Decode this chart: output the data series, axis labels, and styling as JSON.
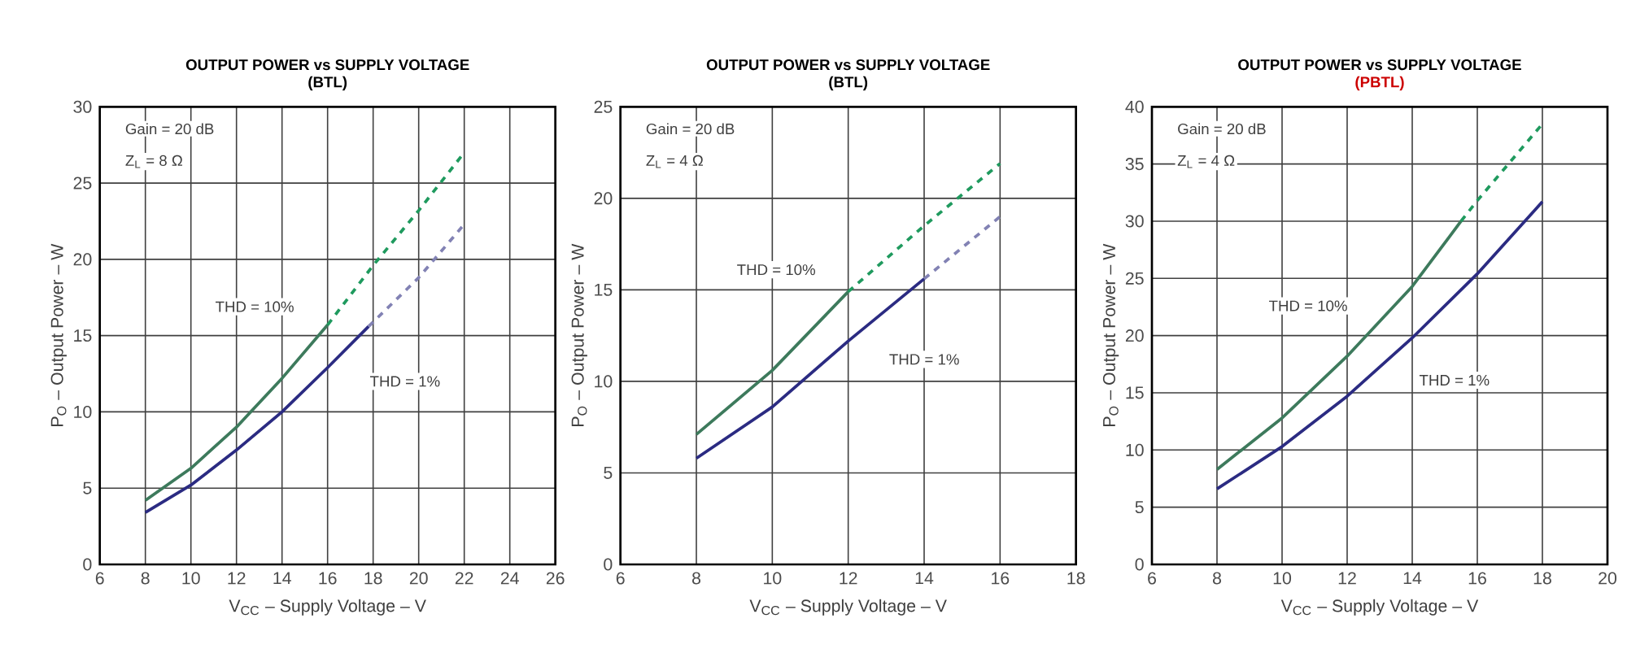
{
  "chart_data": [
    {
      "type": "line",
      "title": "OUTPUT POWER vs SUPPLY VOLTAGE",
      "subtitle": "(BTL)",
      "xlabel": "V$_{CC}$ – Supply Voltage – V",
      "ylabel": "P$_{O}$ – Output Power – W",
      "annotations": [
        "Gain = 20 dB",
        "Z$_{L}$ = 8 Ω",
        "THD = 10%",
        "THD = 1%"
      ],
      "xlim": [
        6,
        26
      ],
      "xticks": [
        6,
        8,
        10,
        12,
        14,
        16,
        18,
        20,
        22,
        24,
        26
      ],
      "ylim": [
        0,
        30
      ],
      "yticks": [
        0,
        5,
        10,
        15,
        20,
        25,
        30
      ],
      "grid": true,
      "series": [
        {
          "color": "#3d7a5c",
          "line_style": "solid",
          "x": [
            8,
            10,
            12,
            14,
            16
          ],
          "values": [
            4.2,
            6.3,
            9.0,
            12.2,
            15.7
          ]
        },
        {
          "color": "#1f9a5e",
          "line_style": "dashed",
          "x": [
            16,
            18,
            20,
            22
          ],
          "values": [
            15.7,
            19.6,
            23.2,
            27.0
          ]
        },
        {
          "color": "#2b2b82",
          "line_style": "solid",
          "x": [
            8,
            10,
            12,
            14,
            16,
            17.8
          ],
          "values": [
            3.4,
            5.2,
            7.5,
            10.0,
            12.9,
            15.6
          ]
        },
        {
          "color": "#8282b4",
          "line_style": "dashed",
          "x": [
            17.8,
            20,
            22
          ],
          "values": [
            15.6,
            18.8,
            22.3
          ]
        }
      ]
    },
    {
      "type": "line",
      "title": "OUTPUT POWER vs SUPPLY VOLTAGE",
      "subtitle": "(BTL)",
      "xlabel": "V$_{CC}$ – Supply Voltage – V",
      "ylabel": "P$_{O}$ – Output Power – W",
      "annotations": [
        "Gain = 20 dB",
        "Z$_{L}$ = 4 Ω",
        "THD = 10%",
        "THD = 1%"
      ],
      "xlim": [
        6,
        18
      ],
      "xticks": [
        6,
        8,
        10,
        12,
        14,
        16,
        18
      ],
      "ylim": [
        0,
        25
      ],
      "yticks": [
        0,
        5,
        10,
        15,
        20,
        25
      ],
      "grid": true,
      "series": [
        {
          "color": "#3d7a5c",
          "line_style": "solid",
          "x": [
            8,
            10,
            12
          ],
          "values": [
            7.1,
            10.6,
            14.9
          ]
        },
        {
          "color": "#1f9a5e",
          "line_style": "dashed",
          "x": [
            12,
            14,
            16
          ],
          "values": [
            14.9,
            18.5,
            21.9
          ]
        },
        {
          "color": "#2b2b82",
          "line_style": "solid",
          "x": [
            8,
            10,
            12,
            14
          ],
          "values": [
            5.8,
            8.6,
            12.2,
            15.6
          ]
        },
        {
          "color": "#8282b4",
          "line_style": "dashed",
          "x": [
            14,
            16
          ],
          "values": [
            15.6,
            19.0
          ]
        }
      ]
    },
    {
      "type": "line",
      "title": "OUTPUT POWER vs SUPPLY VOLTAGE",
      "subtitle": "(PBTL)",
      "xlabel": "V$_{CC}$ – Supply Voltage – V",
      "ylabel": "P$_{O}$ – Output Power – W",
      "annotations": [
        "Gain = 20 dB",
        "Z$_{L}$ = 4 Ω",
        "THD = 10%",
        "THD = 1%"
      ],
      "xlim": [
        6,
        20
      ],
      "xticks": [
        6,
        8,
        10,
        12,
        14,
        16,
        18,
        20
      ],
      "ylim": [
        0,
        40
      ],
      "yticks": [
        0,
        5,
        10,
        15,
        20,
        25,
        30,
        35,
        40
      ],
      "grid": true,
      "series": [
        {
          "color": "#3d7a5c",
          "line_style": "solid",
          "x": [
            8,
            10,
            12,
            14,
            15.5
          ],
          "values": [
            8.3,
            12.8,
            18.2,
            24.3,
            30.0
          ]
        },
        {
          "color": "#1f9a5e",
          "line_style": "dashed",
          "x": [
            15.5,
            16,
            18
          ],
          "values": [
            30.0,
            31.8,
            38.5
          ]
        },
        {
          "color": "#2b2b82",
          "line_style": "solid",
          "x": [
            8,
            10,
            12,
            14,
            16,
            18
          ],
          "values": [
            6.6,
            10.3,
            14.7,
            19.8,
            25.4,
            31.7
          ]
        }
      ]
    }
  ]
}
